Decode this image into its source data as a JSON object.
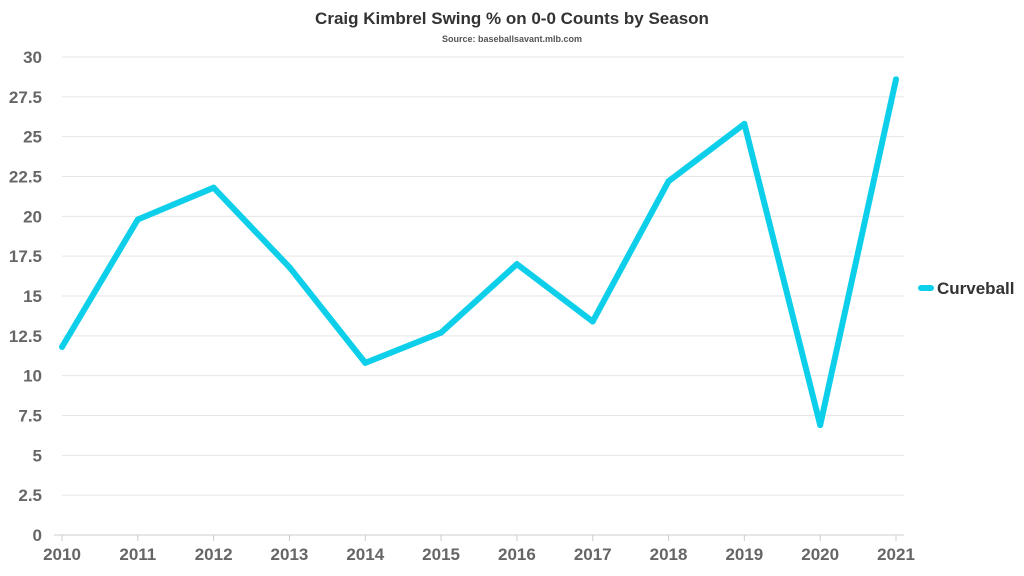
{
  "chart_data": {
    "type": "line",
    "title": "Craig Kimbrel Swing % on 0-0 Counts by Season",
    "subtitle": "Source: baseballsavant.mlb.com",
    "xlabel": "",
    "ylabel": "",
    "categories": [
      "2010",
      "2011",
      "2012",
      "2013",
      "2014",
      "2015",
      "2016",
      "2017",
      "2018",
      "2019",
      "2020",
      "2021"
    ],
    "series": [
      {
        "name": "Curveball",
        "color": "#0dcfea",
        "values": [
          11.8,
          19.8,
          21.8,
          16.8,
          10.8,
          12.7,
          17.0,
          13.4,
          22.2,
          25.8,
          6.9,
          28.6
        ]
      }
    ],
    "ylim": [
      0,
      30
    ],
    "yticks": [
      0,
      2.5,
      5,
      7.5,
      10,
      12.5,
      15,
      17.5,
      20,
      22.5,
      25,
      27.5,
      30
    ],
    "ytick_labels": [
      "0",
      "2.5",
      "5",
      "7.5",
      "10",
      "12.5",
      "15",
      "17.5",
      "20",
      "22.5",
      "25",
      "27.5",
      "30"
    ],
    "grid": true,
    "legend_position": "right"
  }
}
